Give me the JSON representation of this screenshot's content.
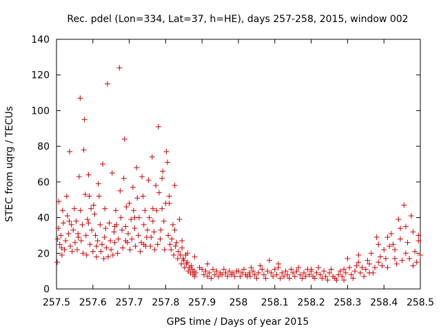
{
  "chart_data": {
    "type": "scatter",
    "title": "Rec. pdel (Lon=334, Lat=37, h=HE), days 257-258, 2015, window 002",
    "xlabel": "GPS time / Days of year 2015",
    "ylabel": "STEC from uqrg / TECUs",
    "xlim": [
      257.5,
      258.5
    ],
    "ylim": [
      0,
      140
    ],
    "xticks": [
      257.5,
      257.6,
      257.7,
      257.8,
      257.9,
      258.0,
      258.1,
      258.2,
      258.3,
      258.4,
      258.5
    ],
    "xtick_labels": [
      "257.5",
      "257.6",
      "257.7",
      "257.8",
      "257.9",
      "258",
      "258.1",
      "258.2",
      "258.3",
      "258.4",
      "258.5"
    ],
    "yticks": [
      0,
      20,
      40,
      60,
      80,
      100,
      120,
      140
    ],
    "ytick_labels": [
      "0",
      "20",
      "40",
      "60",
      "80",
      "100",
      "120",
      "140"
    ],
    "grid": false,
    "marker": "+",
    "color": "#cc0000",
    "points": [
      [
        257.502,
        15
      ],
      [
        257.503,
        28
      ],
      [
        257.505,
        34
      ],
      [
        257.506,
        49
      ],
      [
        257.509,
        25
      ],
      [
        257.512,
        30
      ],
      [
        257.515,
        19
      ],
      [
        257.517,
        44
      ],
      [
        257.519,
        37
      ],
      [
        257.522,
        22
      ],
      [
        257.525,
        27
      ],
      [
        257.528,
        52
      ],
      [
        257.53,
        41
      ],
      [
        257.533,
        31
      ],
      [
        257.536,
        77
      ],
      [
        257.538,
        24
      ],
      [
        257.541,
        36
      ],
      [
        257.543,
        21
      ],
      [
        257.546,
        33
      ],
      [
        257.549,
        45
      ],
      [
        257.551,
        26
      ],
      [
        257.554,
        38
      ],
      [
        257.557,
        22
      ],
      [
        257.559,
        31
      ],
      [
        257.562,
        63
      ],
      [
        257.565,
        107
      ],
      [
        257.566,
        44
      ],
      [
        257.568,
        27
      ],
      [
        257.571,
        36
      ],
      [
        257.573,
        20
      ],
      [
        257.575,
        78
      ],
      [
        257.577,
        95
      ],
      [
        257.579,
        53
      ],
      [
        257.581,
        30
      ],
      [
        257.583,
        19
      ],
      [
        257.585,
        39
      ],
      [
        257.588,
        64
      ],
      [
        257.59,
        52
      ],
      [
        257.592,
        25
      ],
      [
        257.595,
        45
      ],
      [
        257.597,
        33
      ],
      [
        257.6,
        21
      ],
      [
        257.602,
        47
      ],
      [
        257.605,
        42
      ],
      [
        257.607,
        30
      ],
      [
        257.61,
        18
      ],
      [
        257.613,
        27
      ],
      [
        257.615,
        59
      ],
      [
        257.617,
        52
      ],
      [
        257.62,
        36
      ],
      [
        257.622,
        21
      ],
      [
        257.625,
        25
      ],
      [
        257.627,
        70
      ],
      [
        257.63,
        17
      ],
      [
        257.632,
        29
      ],
      [
        257.635,
        34
      ],
      [
        257.637,
        23
      ],
      [
        257.64,
        115
      ],
      [
        257.642,
        18
      ],
      [
        257.645,
        37
      ],
      [
        257.648,
        27
      ],
      [
        257.65,
        22
      ],
      [
        257.653,
        65
      ],
      [
        257.655,
        19
      ],
      [
        257.658,
        32
      ],
      [
        257.66,
        26
      ],
      [
        257.663,
        44
      ],
      [
        257.665,
        36
      ],
      [
        257.668,
        20
      ],
      [
        257.67,
        28
      ],
      [
        257.673,
        124
      ],
      [
        257.675,
        55
      ],
      [
        257.677,
        40
      ],
      [
        257.68,
        33
      ],
      [
        257.682,
        23
      ],
      [
        257.685,
        62
      ],
      [
        257.687,
        84
      ],
      [
        257.69,
        35
      ],
      [
        257.692,
        46
      ],
      [
        257.695,
        26
      ],
      [
        257.697,
        31
      ],
      [
        257.7,
        48
      ],
      [
        257.702,
        22
      ],
      [
        257.705,
        39
      ],
      [
        257.707,
        28
      ],
      [
        257.71,
        57
      ],
      [
        257.712,
        44
      ],
      [
        257.715,
        34
      ],
      [
        257.717,
        24
      ],
      [
        257.72,
        68
      ],
      [
        257.722,
        51
      ],
      [
        257.725,
        30
      ],
      [
        257.727,
        40
      ],
      [
        257.73,
        21
      ],
      [
        257.733,
        26
      ],
      [
        257.735,
        63
      ],
      [
        257.738,
        52
      ],
      [
        257.74,
        36
      ],
      [
        257.743,
        44
      ],
      [
        257.745,
        24
      ],
      [
        257.748,
        29
      ],
      [
        257.75,
        33
      ],
      [
        257.753,
        61
      ],
      [
        257.755,
        40
      ],
      [
        257.758,
        24
      ],
      [
        257.76,
        29
      ],
      [
        257.763,
        74
      ],
      [
        257.765,
        45
      ],
      [
        257.768,
        32
      ],
      [
        257.77,
        22
      ],
      [
        257.773,
        58
      ],
      [
        257.775,
        44
      ],
      [
        257.778,
        25
      ],
      [
        257.78,
        91
      ],
      [
        257.782,
        54
      ],
      [
        257.785,
        28
      ],
      [
        257.787,
        33
      ],
      [
        257.79,
        62
      ],
      [
        257.792,
        66
      ],
      [
        257.795,
        38
      ],
      [
        257.797,
        22
      ],
      [
        257.8,
        48
      ],
      [
        257.802,
        77
      ],
      [
        257.805,
        71
      ],
      [
        257.807,
        30
      ],
      [
        257.81,
        52
      ],
      [
        257.812,
        25
      ],
      [
        257.815,
        22
      ],
      [
        257.817,
        28
      ],
      [
        257.82,
        36
      ],
      [
        257.822,
        19
      ],
      [
        257.825,
        33
      ],
      [
        257.827,
        24
      ],
      [
        257.83,
        26
      ],
      [
        257.833,
        17
      ],
      [
        257.835,
        21
      ],
      [
        257.838,
        39
      ],
      [
        257.84,
        19
      ],
      [
        257.843,
        14
      ],
      [
        257.845,
        23
      ],
      [
        257.848,
        17
      ],
      [
        257.85,
        16
      ],
      [
        257.852,
        12
      ],
      [
        257.855,
        19
      ],
      [
        257.857,
        14
      ],
      [
        257.86,
        15
      ],
      [
        257.862,
        10
      ],
      [
        257.865,
        12
      ],
      [
        257.868,
        9
      ],
      [
        257.87,
        13
      ],
      [
        257.873,
        11
      ],
      [
        257.875,
        8
      ],
      [
        257.878,
        10
      ],
      [
        257.88,
        7
      ],
      [
        257.883,
        9
      ],
      [
        257.9,
        11
      ],
      [
        257.905,
        8
      ],
      [
        257.91,
        10
      ],
      [
        257.915,
        7
      ],
      [
        257.92,
        9
      ],
      [
        257.925,
        6
      ],
      [
        257.93,
        11
      ],
      [
        257.935,
        8
      ],
      [
        257.94,
        10
      ],
      [
        257.945,
        7
      ],
      [
        257.95,
        9
      ],
      [
        257.955,
        8
      ],
      [
        257.96,
        11
      ],
      [
        257.965,
        9
      ],
      [
        257.97,
        7
      ],
      [
        257.975,
        10
      ],
      [
        257.98,
        8
      ],
      [
        257.985,
        9
      ],
      [
        257.99,
        7
      ],
      [
        257.995,
        10
      ],
      [
        258.0,
        10
      ],
      [
        258.005,
        7
      ],
      [
        258.01,
        9
      ],
      [
        258.015,
        11
      ],
      [
        258.02,
        8
      ],
      [
        258.025,
        7
      ],
      [
        258.03,
        9
      ],
      [
        258.035,
        12
      ],
      [
        258.04,
        10
      ],
      [
        258.045,
        8
      ],
      [
        258.05,
        6
      ],
      [
        258.055,
        9
      ],
      [
        258.06,
        13
      ],
      [
        258.065,
        11
      ],
      [
        258.07,
        8
      ],
      [
        258.075,
        6
      ],
      [
        258.08,
        10
      ],
      [
        258.085,
        16
      ],
      [
        258.09,
        9
      ],
      [
        258.095,
        7
      ],
      [
        258.1,
        11
      ],
      [
        258.105,
        8
      ],
      [
        258.11,
        12
      ],
      [
        258.115,
        6
      ],
      [
        258.12,
        9
      ],
      [
        258.125,
        7
      ],
      [
        258.13,
        10
      ],
      [
        258.135,
        8
      ],
      [
        258.14,
        6
      ],
      [
        258.145,
        11
      ],
      [
        258.15,
        9
      ],
      [
        258.155,
        7
      ],
      [
        258.16,
        10
      ],
      [
        258.165,
        12
      ],
      [
        258.17,
        8
      ],
      [
        258.175,
        6
      ],
      [
        258.18,
        9
      ],
      [
        258.185,
        7
      ],
      [
        258.19,
        11
      ],
      [
        258.195,
        8
      ],
      [
        258.2,
        10
      ],
      [
        258.205,
        7
      ],
      [
        258.21,
        6
      ],
      [
        258.215,
        9
      ],
      [
        258.22,
        12
      ],
      [
        258.225,
        8
      ],
      [
        258.23,
        6
      ],
      [
        258.235,
        10
      ],
      [
        258.24,
        7
      ],
      [
        258.245,
        5
      ],
      [
        258.25,
        9
      ],
      [
        258.255,
        11
      ],
      [
        258.26,
        7
      ],
      [
        258.265,
        6
      ],
      [
        258.27,
        5
      ],
      [
        258.275,
        8
      ],
      [
        258.28,
        10
      ],
      [
        258.285,
        7
      ],
      [
        258.29,
        5
      ],
      [
        258.295,
        9
      ],
      [
        258.3,
        17
      ],
      [
        258.305,
        12
      ],
      [
        258.31,
        8
      ],
      [
        258.315,
        6
      ],
      [
        258.32,
        10
      ],
      [
        258.325,
        13
      ],
      [
        258.33,
        15
      ],
      [
        258.335,
        9
      ],
      [
        258.34,
        12
      ],
      [
        258.345,
        7
      ],
      [
        258.35,
        11
      ],
      [
        258.355,
        16
      ],
      [
        258.36,
        14
      ],
      [
        258.365,
        20
      ],
      [
        258.37,
        9
      ],
      [
        258.375,
        12
      ],
      [
        258.38,
        29
      ],
      [
        258.385,
        15
      ],
      [
        258.39,
        18
      ],
      [
        258.395,
        13
      ],
      [
        258.4,
        22
      ],
      [
        258.405,
        17
      ],
      [
        258.41,
        12
      ],
      [
        258.415,
        24
      ],
      [
        258.42,
        31
      ],
      [
        258.425,
        25
      ],
      [
        258.43,
        17
      ],
      [
        258.435,
        14
      ],
      [
        258.44,
        39
      ],
      [
        258.445,
        28
      ],
      [
        258.45,
        16
      ],
      [
        258.455,
        47
      ],
      [
        258.46,
        35
      ],
      [
        258.465,
        26
      ],
      [
        258.47,
        17
      ],
      [
        258.475,
        41
      ],
      [
        258.48,
        32
      ],
      [
        258.485,
        21
      ],
      [
        258.49,
        15
      ],
      [
        258.495,
        27
      ],
      [
        258.5,
        19
      ],
      [
        257.514,
        23
      ],
      [
        257.535,
        38
      ],
      [
        257.56,
        29
      ],
      [
        257.588,
        37
      ],
      [
        257.61,
        24
      ],
      [
        257.633,
        45
      ],
      [
        257.66,
        35
      ],
      [
        257.69,
        27
      ],
      [
        257.715,
        40
      ],
      [
        257.74,
        25
      ],
      [
        257.765,
        38
      ],
      [
        257.79,
        45
      ],
      [
        257.81,
        48
      ],
      [
        257.825,
        58
      ],
      [
        257.845,
        27
      ],
      [
        257.86,
        20
      ],
      [
        257.88,
        18
      ],
      [
        257.893,
        12
      ],
      [
        257.915,
        14
      ],
      [
        258.032,
        7
      ],
      [
        258.11,
        14
      ],
      [
        258.2,
        11
      ],
      [
        258.29,
        11
      ],
      [
        258.33,
        19
      ],
      [
        258.36,
        9
      ],
      [
        258.385,
        25
      ],
      [
        258.41,
        29
      ],
      [
        258.43,
        22
      ],
      [
        258.445,
        34
      ],
      [
        258.46,
        20
      ],
      [
        258.48,
        13
      ],
      [
        258.495,
        30
      ]
    ]
  }
}
